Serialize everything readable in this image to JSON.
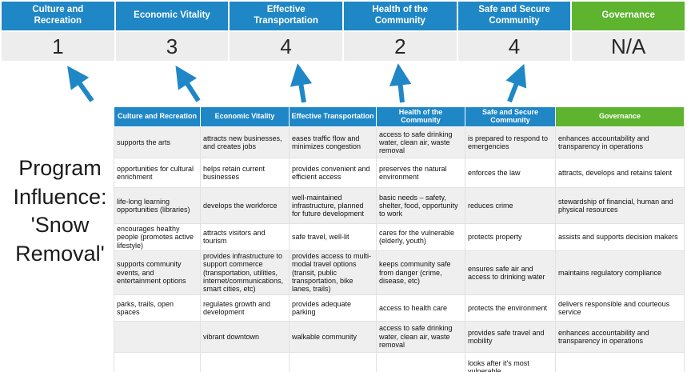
{
  "title": "Program Influence: 'Snow Removal'",
  "colors": {
    "header_blue": "#1F87C6",
    "governance_green": "#5EB32F",
    "highlight_yellow": "#FCF9A0",
    "arrow_blue": "#1F87C6",
    "score_band_gray": "#EDEDED"
  },
  "scoreband": {
    "columns": [
      {
        "label": "Culture and Recreation",
        "score": "1",
        "color": "#1F87C6"
      },
      {
        "label": "Economic Vitality",
        "score": "3",
        "color": "#1F87C6"
      },
      {
        "label": "Effective Transportation",
        "score": "4",
        "color": "#1F87C6"
      },
      {
        "label": "Health of the Community",
        "score": "2",
        "color": "#1F87C6"
      },
      {
        "label": "Safe and Secure Community",
        "score": "4",
        "color": "#1F87C6"
      },
      {
        "label": "Governance",
        "score": "N/A",
        "color": "#5EB32F"
      }
    ]
  },
  "matrix": {
    "headers": [
      {
        "label": "Culture and Recreation",
        "color": "#1F87C6"
      },
      {
        "label": "Economic Vitality",
        "color": "#1F87C6"
      },
      {
        "label": "Effective Transportation",
        "color": "#1F87C6"
      },
      {
        "label": "Health of the Community",
        "color": "#1F87C6"
      },
      {
        "label": "Safe and Secure Community",
        "color": "#1F87C6"
      },
      {
        "label": "Governance",
        "color": "#5EB32F"
      }
    ],
    "rows": [
      [
        {
          "text": "supports the arts",
          "highlight": false
        },
        {
          "text": "attracts new businesses, and creates jobs",
          "highlight": false
        },
        {
          "text": "eases traffic flow and minimizes congestion",
          "highlight": true
        },
        {
          "text": "access to safe drinking water, clean air, waste removal",
          "highlight": false
        },
        {
          "text": "is prepared to respond to emergencies",
          "highlight": true
        },
        {
          "text": "enhances accountability and transparency in operations",
          "highlight": false
        }
      ],
      [
        {
          "text": "opportunities for cultural enrichment",
          "highlight": false
        },
        {
          "text": "helps retain current businesses",
          "highlight": true
        },
        {
          "text": "provides convenient and efficient access",
          "highlight": true
        },
        {
          "text": "preserves the natural environment",
          "highlight": false
        },
        {
          "text": "enforces the law",
          "highlight": false
        },
        {
          "text": "attracts, develops and retains talent",
          "highlight": false
        }
      ],
      [
        {
          "text": "life-long learning opportunities (libraries)",
          "highlight": false
        },
        {
          "text": "develops the workforce",
          "highlight": false
        },
        {
          "text": "well-maintained infrastructure, planned for future development",
          "highlight": false
        },
        {
          "text": "basic needs – safety, shelter, food, opportunity to work",
          "highlight": true
        },
        {
          "text": "reduces crime",
          "highlight": false
        },
        {
          "text": "stewardship of financial, human and physical resources",
          "highlight": false
        }
      ],
      [
        {
          "text": "encourages healthy people (promotes active lifestyle)",
          "highlight": false
        },
        {
          "text": "attracts visitors and tourism",
          "highlight": false
        },
        {
          "text": "safe travel, well-lit",
          "highlight": true
        },
        {
          "text": "cares for the vulnerable (elderly, youth)",
          "highlight": true
        },
        {
          "text": "protects property",
          "highlight": true
        },
        {
          "text": "assists and supports decision makers",
          "highlight": false
        }
      ],
      [
        {
          "text": "supports community events, and entertainment options",
          "highlight": false
        },
        {
          "text": "provides infrastructure to support commerce (transportation, utilities, internet/communications, smart cities, etc)",
          "highlight": true
        },
        {
          "text": "provides access to multi-modal travel options (transit, public transportation, bike lanes, trails)",
          "highlight": true
        },
        {
          "text": "keeps community safe from danger (crime, disease, etc)",
          "highlight": true
        },
        {
          "text": "ensures safe air and access to drinking water",
          "highlight": false
        },
        {
          "text": "maintains regulatory compliance",
          "highlight": false
        }
      ],
      [
        {
          "text": "parks, trails, open spaces",
          "highlight": true
        },
        {
          "text": "regulates growth and development",
          "highlight": false
        },
        {
          "text": "provides adequate parking",
          "highlight": false
        },
        {
          "text": "access to health care",
          "highlight": false
        },
        {
          "text": "protects the environment",
          "highlight": false
        },
        {
          "text": "delivers responsible and courteous service",
          "highlight": false
        }
      ],
      [
        {
          "text": "",
          "highlight": false
        },
        {
          "text": "vibrant downtown",
          "highlight": false
        },
        {
          "text": "walkable community",
          "highlight": false
        },
        {
          "text": "access to safe drinking water, clean air, waste removal",
          "highlight": false
        },
        {
          "text": "provides safe travel and mobility",
          "highlight": true
        },
        {
          "text": "enhances accountability and transparency in operations",
          "highlight": false
        }
      ],
      [
        {
          "text": "",
          "highlight": false
        },
        {
          "text": "",
          "highlight": false
        },
        {
          "text": "",
          "highlight": false
        },
        {
          "text": "",
          "highlight": false
        },
        {
          "text": "looks after it's most vulnerable",
          "highlight": true
        },
        {
          "text": "",
          "highlight": false
        }
      ]
    ]
  }
}
